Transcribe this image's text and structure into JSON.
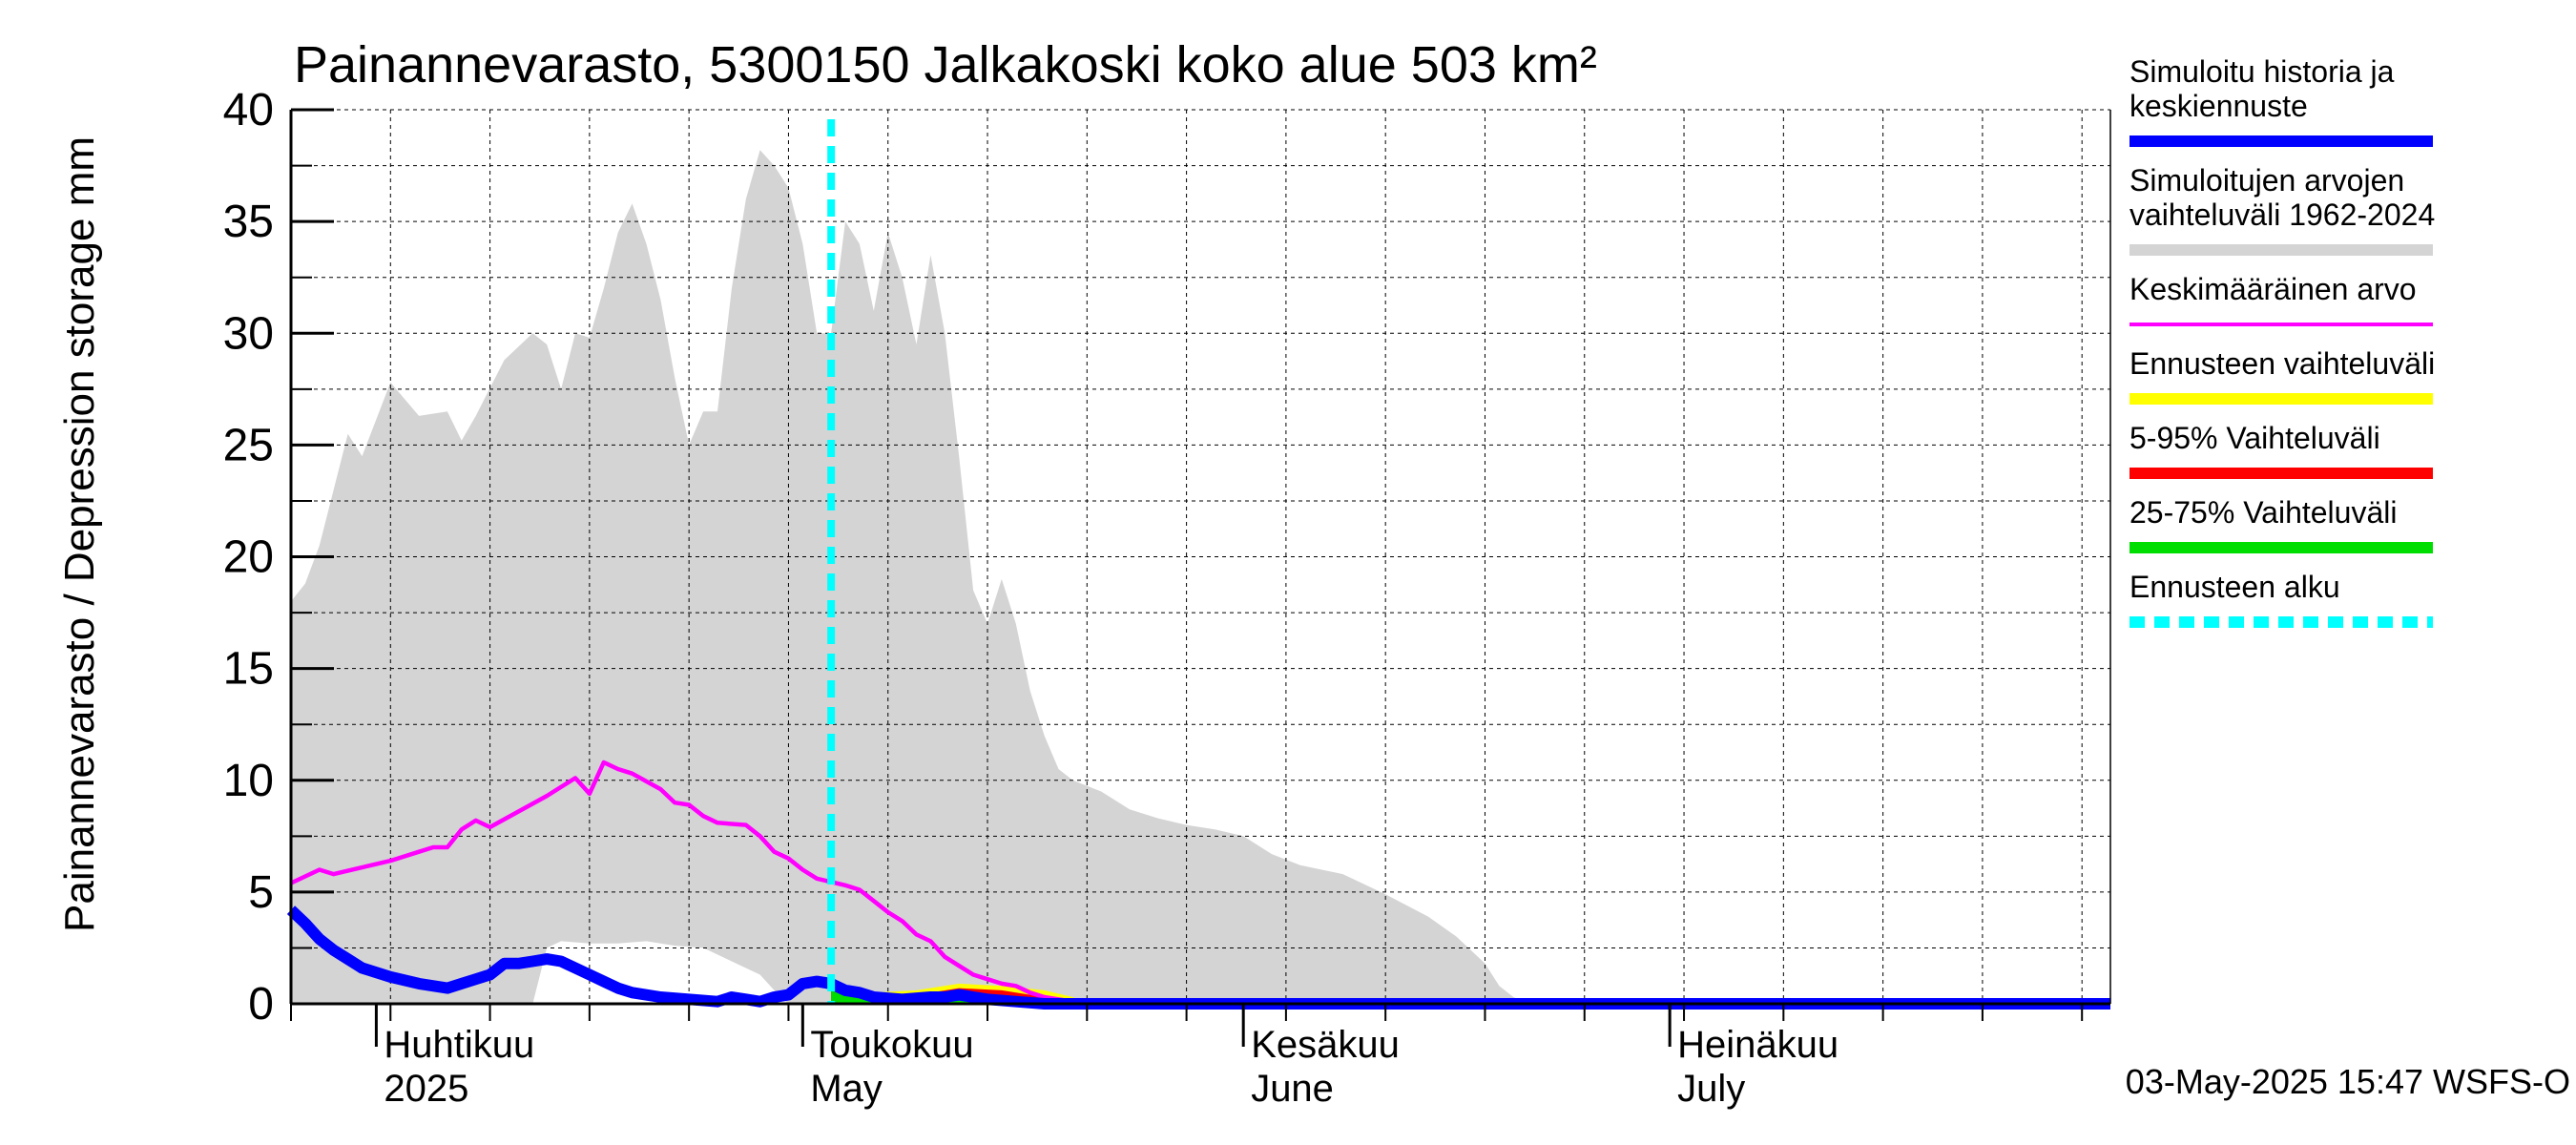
{
  "chart_data": {
    "type": "area",
    "title": "Painannevarasto, 5300150 Jalkakoski koko alue 503 km²",
    "ylabel": "Painannevarasto / Depression storage    mm",
    "ylim": [
      0,
      40
    ],
    "yticks": [
      0,
      5,
      10,
      15,
      20,
      25,
      30,
      35,
      40
    ],
    "xlim": [
      "2025-03-26",
      "2025-08-01"
    ],
    "month_labels": [
      {
        "line1": "Huhtikuu",
        "line2": "2025",
        "date": "2025-04-01"
      },
      {
        "line1": "Toukokuu",
        "line2": "May",
        "date": "2025-05-01"
      },
      {
        "line1": "Kesäkuu",
        "line2": "June",
        "date": "2025-06-01"
      },
      {
        "line1": "Heinäkuu",
        "line2": "July",
        "date": "2025-07-01"
      }
    ],
    "grid": true,
    "legend_position": "right",
    "forecast_start": "2025-05-03",
    "timestamp": "03-May-2025 15:47 WSFS-O",
    "series": [
      {
        "name": "Simuloitujen arvojen vaihteluväli 1962-2024",
        "role": "range",
        "color": "#d4d4d4",
        "upper": [
          [
            "2025-03-26",
            18.0
          ],
          [
            "2025-03-27",
            18.8
          ],
          [
            "2025-03-28",
            20.5
          ],
          [
            "2025-03-29",
            23.0
          ],
          [
            "2025-03-30",
            25.5
          ],
          [
            "2025-03-31",
            24.5
          ],
          [
            "2025-04-02",
            27.8
          ],
          [
            "2025-04-04",
            26.3
          ],
          [
            "2025-04-06",
            26.5
          ],
          [
            "2025-04-07",
            25.2
          ],
          [
            "2025-04-08",
            26.3
          ],
          [
            "2025-04-10",
            28.8
          ],
          [
            "2025-04-12",
            30.0
          ],
          [
            "2025-04-13",
            29.5
          ],
          [
            "2025-04-14",
            27.5
          ],
          [
            "2025-04-15",
            30.0
          ],
          [
            "2025-04-16",
            29.8
          ],
          [
            "2025-04-17",
            32.0
          ],
          [
            "2025-04-18",
            34.5
          ],
          [
            "2025-04-19",
            35.8
          ],
          [
            "2025-04-20",
            34.0
          ],
          [
            "2025-04-21",
            31.5
          ],
          [
            "2025-04-22",
            28.0
          ],
          [
            "2025-04-23",
            25.0
          ],
          [
            "2025-04-24",
            26.5
          ],
          [
            "2025-04-25",
            26.5
          ],
          [
            "2025-04-26",
            32.0
          ],
          [
            "2025-04-27",
            36.0
          ],
          [
            "2025-04-28",
            38.2
          ],
          [
            "2025-04-29",
            37.5
          ],
          [
            "2025-04-30",
            36.5
          ],
          [
            "2025-05-01",
            34.0
          ],
          [
            "2025-05-02",
            30.0
          ],
          [
            "2025-05-03",
            30.0
          ],
          [
            "2025-05-04",
            35.0
          ],
          [
            "2025-05-05",
            34.0
          ],
          [
            "2025-05-06",
            31.0
          ],
          [
            "2025-05-07",
            34.5
          ],
          [
            "2025-05-08",
            32.5
          ],
          [
            "2025-05-09",
            29.5
          ],
          [
            "2025-05-10",
            33.5
          ],
          [
            "2025-05-11",
            30.0
          ],
          [
            "2025-05-12",
            24.5
          ],
          [
            "2025-05-13",
            18.5
          ],
          [
            "2025-05-14",
            17.0
          ],
          [
            "2025-05-15",
            19.0
          ],
          [
            "2025-05-16",
            17.0
          ],
          [
            "2025-05-17",
            14.0
          ],
          [
            "2025-05-18",
            12.0
          ],
          [
            "2025-05-19",
            10.5
          ],
          [
            "2025-05-20",
            10.0
          ],
          [
            "2025-05-22",
            9.5
          ],
          [
            "2025-05-24",
            8.7
          ],
          [
            "2025-05-26",
            8.3
          ],
          [
            "2025-05-28",
            8.0
          ],
          [
            "2025-05-30",
            7.8
          ],
          [
            "2025-06-01",
            7.5
          ],
          [
            "2025-06-03",
            6.7
          ],
          [
            "2025-06-05",
            6.2
          ],
          [
            "2025-06-08",
            5.8
          ],
          [
            "2025-06-11",
            4.9
          ],
          [
            "2025-06-14",
            3.9
          ],
          [
            "2025-06-16",
            3.0
          ],
          [
            "2025-06-18",
            1.8
          ],
          [
            "2025-06-19",
            0.8
          ],
          [
            "2025-06-20",
            0.3
          ],
          [
            "2025-06-21",
            0.0
          ],
          [
            "2025-08-01",
            0.0
          ]
        ],
        "lower": [
          [
            "2025-03-26",
            0.0
          ],
          [
            "2025-04-12",
            0.0
          ],
          [
            "2025-04-13",
            2.5
          ],
          [
            "2025-04-14",
            2.8
          ],
          [
            "2025-04-16",
            2.7
          ],
          [
            "2025-04-18",
            2.7
          ],
          [
            "2025-04-20",
            2.8
          ],
          [
            "2025-04-22",
            2.6
          ],
          [
            "2025-04-24",
            2.5
          ],
          [
            "2025-04-26",
            1.9
          ],
          [
            "2025-04-28",
            1.3
          ],
          [
            "2025-04-29",
            0.6
          ],
          [
            "2025-04-30",
            0.0
          ],
          [
            "2025-08-01",
            0.0
          ]
        ]
      },
      {
        "name": "Ennusteen vaihteluväli",
        "role": "forecast-band",
        "color": "#ffff00",
        "upper": [
          [
            "2025-05-03",
            0.9
          ],
          [
            "2025-05-06",
            0.5
          ],
          [
            "2025-05-09",
            0.6
          ],
          [
            "2025-05-12",
            0.9
          ],
          [
            "2025-05-15",
            0.8
          ],
          [
            "2025-05-18",
            0.6
          ],
          [
            "2025-05-20",
            0.3
          ],
          [
            "2025-05-21",
            0.0
          ],
          [
            "2025-08-01",
            0.0
          ]
        ]
      },
      {
        "name": "5-95% Vaihteluväli",
        "role": "forecast-band",
        "color": "#ff0000",
        "upper": [
          [
            "2025-05-03",
            0.8
          ],
          [
            "2025-05-06",
            0.4
          ],
          [
            "2025-05-09",
            0.4
          ],
          [
            "2025-05-12",
            0.7
          ],
          [
            "2025-05-15",
            0.6
          ],
          [
            "2025-05-18",
            0.3
          ],
          [
            "2025-05-19",
            0.0
          ],
          [
            "2025-08-01",
            0.0
          ]
        ]
      },
      {
        "name": "25-75% Vaihteluväli",
        "role": "forecast-band",
        "color": "#00dd00",
        "upper": [
          [
            "2025-05-03",
            0.7
          ],
          [
            "2025-05-06",
            0.3
          ],
          [
            "2025-05-09",
            0.3
          ],
          [
            "2025-05-12",
            0.5
          ],
          [
            "2025-05-15",
            0.4
          ],
          [
            "2025-05-17",
            0.1
          ],
          [
            "2025-05-18",
            0.0
          ],
          [
            "2025-08-01",
            0.0
          ]
        ]
      },
      {
        "name": "Keskimääräinen arvo",
        "role": "line",
        "color": "#ff00ff",
        "points": [
          [
            "2025-03-26",
            5.4
          ],
          [
            "2025-03-28",
            6.0
          ],
          [
            "2025-03-29",
            5.8
          ],
          [
            "2025-03-31",
            6.1
          ],
          [
            "2025-04-02",
            6.4
          ],
          [
            "2025-04-04",
            6.8
          ],
          [
            "2025-04-05",
            7.0
          ],
          [
            "2025-04-06",
            7.0
          ],
          [
            "2025-04-07",
            7.8
          ],
          [
            "2025-04-08",
            8.2
          ],
          [
            "2025-04-09",
            7.9
          ],
          [
            "2025-04-11",
            8.6
          ],
          [
            "2025-04-13",
            9.3
          ],
          [
            "2025-04-15",
            10.1
          ],
          [
            "2025-04-16",
            9.4
          ],
          [
            "2025-04-17",
            10.8
          ],
          [
            "2025-04-18",
            10.5
          ],
          [
            "2025-04-19",
            10.3
          ],
          [
            "2025-04-21",
            9.6
          ],
          [
            "2025-04-22",
            9.0
          ],
          [
            "2025-04-23",
            8.9
          ],
          [
            "2025-04-24",
            8.4
          ],
          [
            "2025-04-25",
            8.1
          ],
          [
            "2025-04-27",
            8.0
          ],
          [
            "2025-04-28",
            7.5
          ],
          [
            "2025-04-29",
            6.8
          ],
          [
            "2025-04-30",
            6.5
          ],
          [
            "2025-05-01",
            6.0
          ],
          [
            "2025-05-02",
            5.6
          ],
          [
            "2025-05-04",
            5.3
          ],
          [
            "2025-05-05",
            5.1
          ],
          [
            "2025-05-06",
            4.6
          ],
          [
            "2025-05-07",
            4.1
          ],
          [
            "2025-05-08",
            3.7
          ],
          [
            "2025-05-09",
            3.1
          ],
          [
            "2025-05-10",
            2.8
          ],
          [
            "2025-05-11",
            2.1
          ],
          [
            "2025-05-12",
            1.7
          ],
          [
            "2025-05-13",
            1.3
          ],
          [
            "2025-05-14",
            1.1
          ],
          [
            "2025-05-15",
            0.9
          ],
          [
            "2025-05-16",
            0.8
          ],
          [
            "2025-05-17",
            0.5
          ],
          [
            "2025-05-18",
            0.3
          ],
          [
            "2025-05-20",
            0.1
          ],
          [
            "2025-05-22",
            0.0
          ],
          [
            "2025-08-01",
            0.0
          ]
        ]
      },
      {
        "name": "Simuloitu historia ja keskiennuste",
        "role": "line",
        "color": "#0000ff",
        "points": [
          [
            "2025-03-26",
            4.2
          ],
          [
            "2025-03-27",
            3.6
          ],
          [
            "2025-03-28",
            2.9
          ],
          [
            "2025-03-29",
            2.4
          ],
          [
            "2025-03-30",
            2.0
          ],
          [
            "2025-03-31",
            1.6
          ],
          [
            "2025-04-02",
            1.2
          ],
          [
            "2025-04-04",
            0.9
          ],
          [
            "2025-04-06",
            0.7
          ],
          [
            "2025-04-07",
            0.9
          ],
          [
            "2025-04-08",
            1.1
          ],
          [
            "2025-04-09",
            1.3
          ],
          [
            "2025-04-10",
            1.8
          ],
          [
            "2025-04-11",
            1.8
          ],
          [
            "2025-04-12",
            1.9
          ],
          [
            "2025-04-13",
            2.0
          ],
          [
            "2025-04-14",
            1.9
          ],
          [
            "2025-04-15",
            1.6
          ],
          [
            "2025-04-16",
            1.3
          ],
          [
            "2025-04-17",
            1.0
          ],
          [
            "2025-04-18",
            0.7
          ],
          [
            "2025-04-19",
            0.5
          ],
          [
            "2025-04-21",
            0.3
          ],
          [
            "2025-04-23",
            0.2
          ],
          [
            "2025-04-25",
            0.1
          ],
          [
            "2025-04-26",
            0.3
          ],
          [
            "2025-04-27",
            0.2
          ],
          [
            "2025-04-28",
            0.1
          ],
          [
            "2025-04-29",
            0.3
          ],
          [
            "2025-04-30",
            0.4
          ],
          [
            "2025-05-01",
            0.9
          ],
          [
            "2025-05-02",
            1.0
          ],
          [
            "2025-05-03",
            0.9
          ],
          [
            "2025-05-04",
            0.6
          ],
          [
            "2025-05-05",
            0.5
          ],
          [
            "2025-05-06",
            0.3
          ],
          [
            "2025-05-08",
            0.2
          ],
          [
            "2025-05-10",
            0.3
          ],
          [
            "2025-05-11",
            0.3
          ],
          [
            "2025-05-12",
            0.4
          ],
          [
            "2025-05-13",
            0.3
          ],
          [
            "2025-05-14",
            0.2
          ],
          [
            "2025-05-16",
            0.1
          ],
          [
            "2025-05-18",
            0.0
          ],
          [
            "2025-08-01",
            0.0
          ]
        ]
      }
    ],
    "legend": [
      {
        "lines": [
          "Simuloitu historia ja",
          "keskiennuste"
        ],
        "color": "#0000ff",
        "style": "thick"
      },
      {
        "lines": [
          "Simuloitujen arvojen",
          "vaihteluväli 1962-2024"
        ],
        "color": "#d4d4d4",
        "style": "thick"
      },
      {
        "lines": [
          "Keskimääräinen arvo"
        ],
        "color": "#ff00ff",
        "style": "thin"
      },
      {
        "lines": [
          "Ennusteen vaihteluväli"
        ],
        "color": "#ffff00",
        "style": "thick"
      },
      {
        "lines": [
          "5-95% Vaihteluväli"
        ],
        "color": "#ff0000",
        "style": "thick"
      },
      {
        "lines": [
          "25-75% Vaihteluväli"
        ],
        "color": "#00dd00",
        "style": "thick"
      },
      {
        "lines": [
          "Ennusteen alku"
        ],
        "color": "#00ffff",
        "style": "dashed"
      }
    ]
  }
}
